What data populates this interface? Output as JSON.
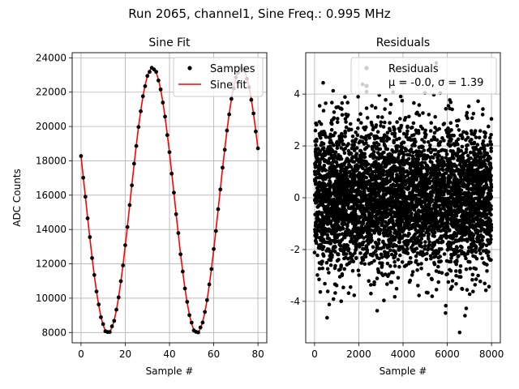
{
  "suptitle": "Run 2065, channel1, Sine Freq.: 0.995 MHz",
  "chart_data": [
    {
      "type": "line",
      "title": "Sine Fit",
      "xlabel": "Sample #",
      "ylabel": "ADC Counts",
      "xlim": [
        -4,
        84
      ],
      "ylim": [
        7400,
        24300
      ],
      "xticks": [
        0,
        20,
        40,
        60,
        80
      ],
      "yticks": [
        8000,
        10000,
        12000,
        14000,
        16000,
        18000,
        20000,
        22000,
        24000
      ],
      "grid": true,
      "legend_position": "top-right",
      "fit": {
        "offset": 15700,
        "amplitude": 7700,
        "period_samples": 40.2,
        "phase_sample": 32.3
      },
      "series": [
        {
          "name": "Samples",
          "style": "points",
          "color": "#000000",
          "x_start": 0,
          "x_end": 80
        },
        {
          "name": "Sine fit",
          "style": "line",
          "color": "#ff0000",
          "x_start": 0,
          "x_end": 80
        }
      ]
    },
    {
      "type": "scatter",
      "title": "Residuals",
      "xlabel": "Sample #",
      "ylabel": "",
      "xlim": [
        -400,
        8400
      ],
      "ylim": [
        -5.6,
        5.6
      ],
      "xticks": [
        0,
        2000,
        4000,
        6000,
        8000
      ],
      "yticks": [
        -4,
        -2,
        0,
        2,
        4
      ],
      "grid": true,
      "legend_position": "top-right",
      "n_points": 8000,
      "mean": -0.0,
      "std": 1.39,
      "series": [
        {
          "name": "Residuals",
          "style": "points",
          "color": "#000000",
          "stats_label_prefix": "μ = -0.0, σ = 1.39"
        }
      ]
    }
  ]
}
